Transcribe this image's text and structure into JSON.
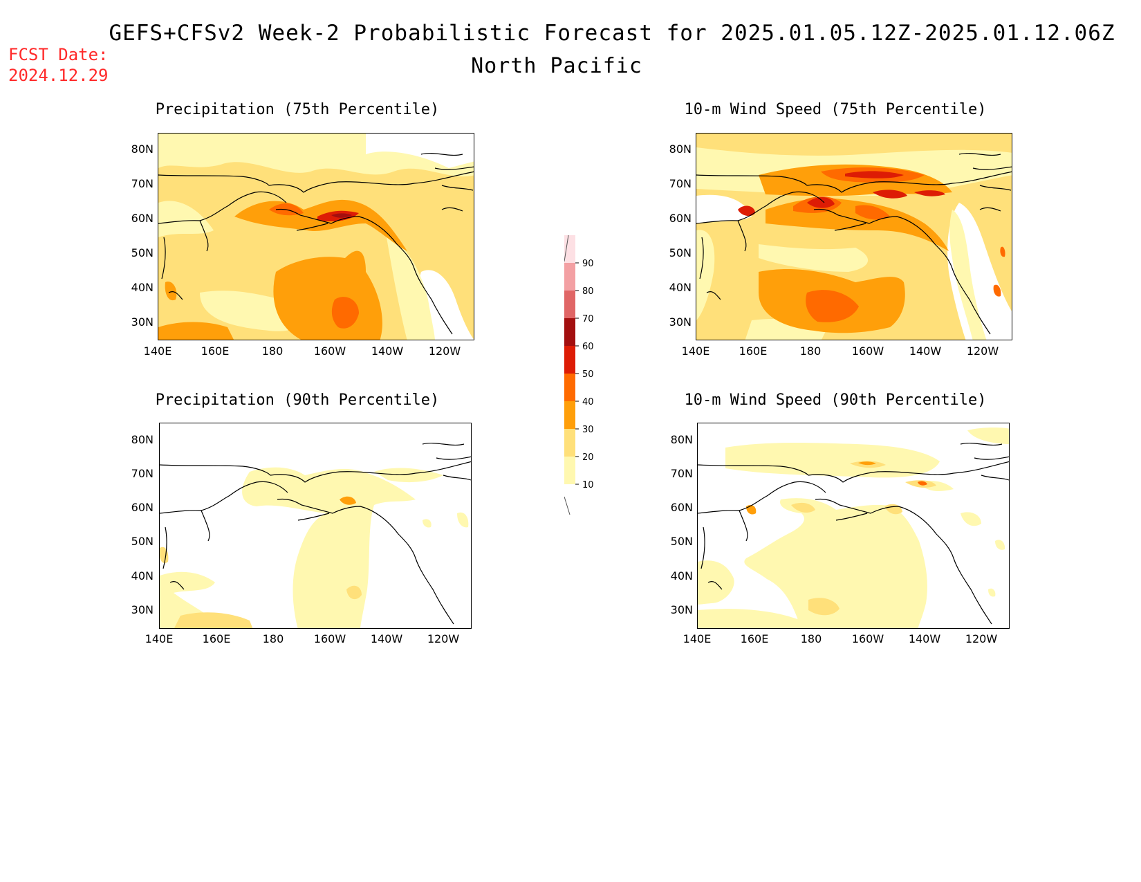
{
  "header": {
    "title": "GEFS+CFSv2 Week-2 Probabilistic Forecast for 2025.01.05.12Z-2025.01.12.06Z",
    "region": "North Pacific",
    "fcst_label": "FCST Date:",
    "fcst_date": "2024.12.29"
  },
  "panels": [
    {
      "title": "Precipitation (75th Percentile)"
    },
    {
      "title": "10-m Wind Speed (75th Percentile)"
    },
    {
      "title": "Precipitation (90th Percentile)"
    },
    {
      "title": "10-m Wind Speed (90th Percentile)"
    }
  ],
  "axes": {
    "lat_labels": [
      "80N",
      "70N",
      "60N",
      "50N",
      "40N",
      "30N"
    ],
    "lon_labels": [
      "140E",
      "160E",
      "180",
      "160W",
      "140W",
      "120W"
    ]
  },
  "colorbar": {
    "levels": [
      "90",
      "80",
      "70",
      "60",
      "50",
      "40",
      "30",
      "20",
      "10"
    ],
    "colors": [
      "#fde0e4",
      "#f3a0a3",
      "#e06666",
      "#a30f0f",
      "#dd1c05",
      "#ff6a00",
      "#ff9f0a",
      "#ffe07a",
      "#fff8b0"
    ]
  },
  "colors": {
    "fcst_red": "#ff2a2a",
    "lvl10": "#fff8b0",
    "lvl20": "#ffe07a",
    "lvl30": "#ff9f0a",
    "lvl40": "#ff6a00",
    "lvl50": "#dd1c05",
    "lvl60": "#a30f0f"
  }
}
